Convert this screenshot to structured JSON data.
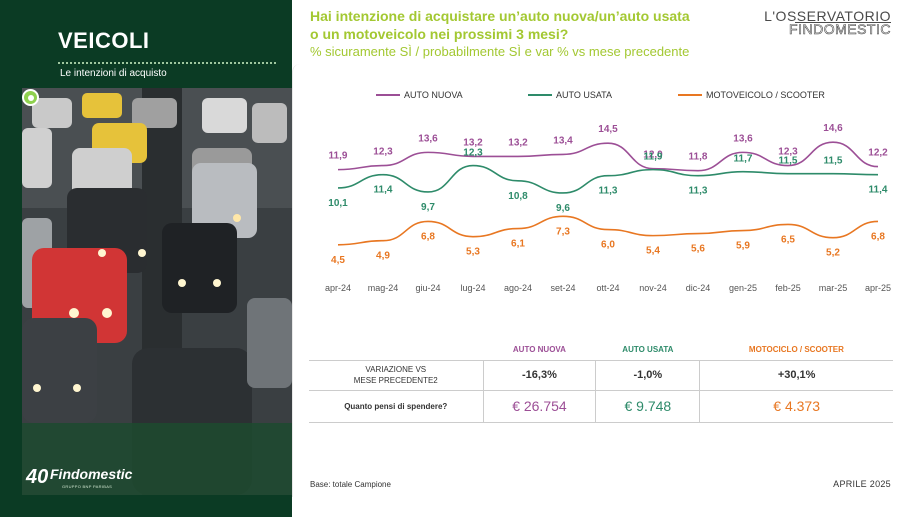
{
  "left": {
    "title": "VEICOLI",
    "subtitle": "Le intenzioni di acquisto",
    "logo_number": "40",
    "logo_brand": "Findomestic",
    "logo_sub": "GRUPPO BNP PARIBAS"
  },
  "header": {
    "question_line1": "Hai intenzione di acquistare un’auto nuova/un’auto usata",
    "question_line2": "o un motoveicolo nei prossimi 3 mesi?",
    "question_sub": "% sicuramente SÌ / probabilmente SÌ e var % vs mese precedente",
    "brand_top": "L'OSSERVATORIO",
    "brand_bottom": "FINDOMESTIC"
  },
  "chart_data": {
    "type": "line",
    "categories": [
      "apr-24",
      "mag-24",
      "giu-24",
      "lug-24",
      "ago-24",
      "set-24",
      "ott-24",
      "nov-24",
      "dic-24",
      "gen-25",
      "feb-25",
      "mar-25",
      "apr-25"
    ],
    "series": [
      {
        "name": "AUTO NUOVA",
        "color": "#9c4f96",
        "values": [
          11.9,
          12.3,
          13.6,
          13.2,
          13.2,
          13.4,
          14.5,
          12.0,
          11.8,
          13.6,
          12.3,
          14.6,
          12.2
        ],
        "labels": [
          "11,9",
          "12,3",
          "13,6",
          "13,2",
          "13,2",
          "13,4",
          "14,5",
          "12,0",
          "11,8",
          "13,6",
          "12,3",
          "14,6",
          "12,2"
        ]
      },
      {
        "name": "AUTO USATA",
        "color": "#2e8b6a",
        "values": [
          10.1,
          11.4,
          9.7,
          12.3,
          10.8,
          9.6,
          11.3,
          11.9,
          11.3,
          11.7,
          11.5,
          11.5,
          11.4
        ],
        "labels": [
          "10,1",
          "11,4",
          "9,7",
          "12,3",
          "10,8",
          "9,6",
          "11,3",
          "11,9",
          "11,3",
          "11,7",
          "11,5",
          "11,5",
          "11,4"
        ]
      },
      {
        "name": "MOTOVEICOLO / SCOOTER",
        "color": "#e87722",
        "values": [
          4.5,
          4.9,
          6.8,
          5.3,
          6.1,
          7.3,
          6.0,
          5.4,
          5.6,
          5.9,
          6.5,
          5.2,
          6.8
        ],
        "labels": [
          "4,5",
          "4,9",
          "6,8",
          "5,3",
          "6,1",
          "7,3",
          "6,0",
          "5,4",
          "5,6",
          "5,9",
          "6,5",
          "5,2",
          "6,8"
        ]
      }
    ]
  },
  "table": {
    "headers": [
      "AUTO NUOVA",
      "AUTO USATA",
      "MOTOCICLO / SCOOTER"
    ],
    "header_colors": [
      "#9c4f96",
      "#2e8b6a",
      "#e87722"
    ],
    "row1_label_line1": "VARIAZIONE VS",
    "row1_label_line2": "MESE PRECEDENTE2",
    "row1_values": [
      "-16,3%",
      "-1,0%",
      "+30,1%"
    ],
    "row2_label": "Quanto pensi di spendere?",
    "row2_values": [
      "€ 26.754",
      "€ 9.748",
      "€ 4.373"
    ]
  },
  "footer": {
    "base": "Base: totale Campione",
    "date": "APRILE 2025"
  }
}
